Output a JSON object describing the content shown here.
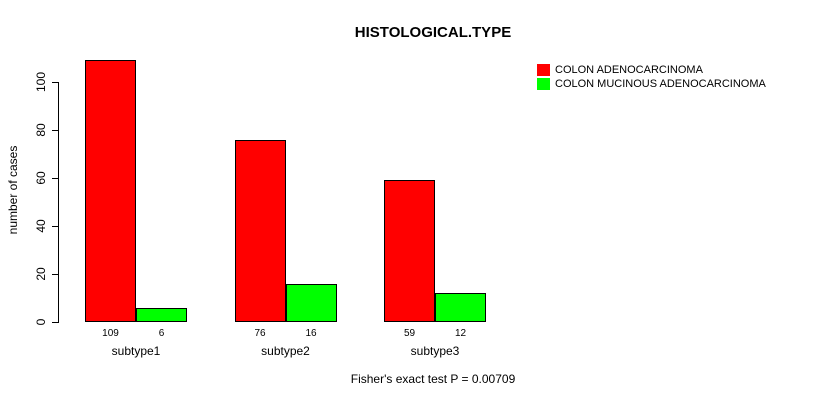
{
  "chart_data": {
    "type": "bar",
    "title": "HISTOLOGICAL.TYPE",
    "xlabel": "",
    "ylabel": "number of cases",
    "categories": [
      "subtype1",
      "subtype2",
      "subtype3"
    ],
    "series": [
      {
        "name": "COLON ADENOCARCINOMA",
        "color": "#FF0000",
        "values": [
          109,
          76,
          59
        ]
      },
      {
        "name": "COLON MUCINOUS ADENOCARCINOMA",
        "color": "#00FF00",
        "values": [
          6,
          16,
          12
        ]
      }
    ],
    "yticks": [
      0,
      20,
      40,
      60,
      80,
      100
    ],
    "ylim": [
      0,
      120
    ],
    "bar_value_labels_shown": true,
    "grid": "off",
    "legend_position": "top-right",
    "footnote": "Fisher's exact test P = 0.00709"
  }
}
